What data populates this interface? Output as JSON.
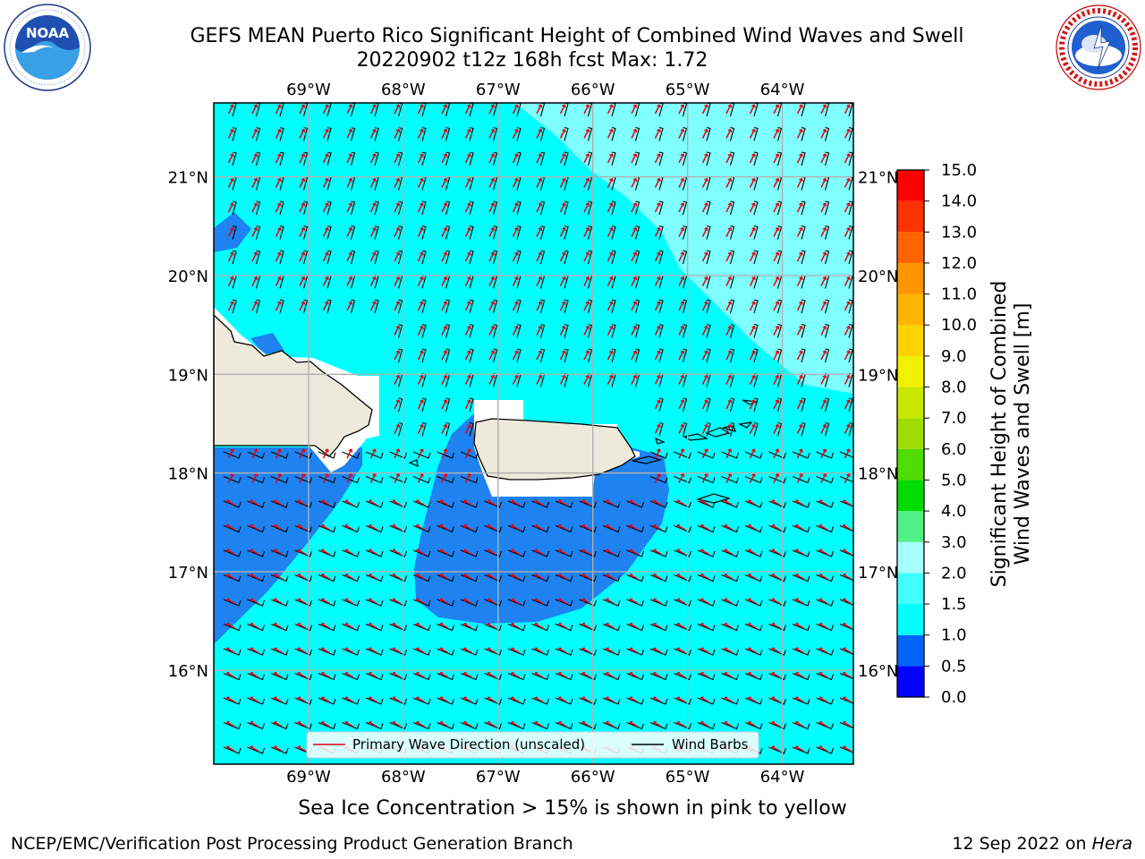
{
  "header": {
    "title_line1": "GEFS MEAN Puerto Rico Significant Height of Combined Wind Waves and Swell",
    "title_line2": "20220902 t12z 168h fcst   Max: 1.72"
  },
  "logos": {
    "left": {
      "name": "noaa-logo",
      "text": "NOAA",
      "ring_text": "NATIONAL OCEANIC AND ATMOSPHERIC ADMINISTRATION · U.S. DEPARTMENT OF COMMERCE"
    },
    "right": {
      "name": "nws-logo",
      "ring_text": "NATIONAL WEATHER SERVICE"
    }
  },
  "map": {
    "lon_labels": [
      "69°W",
      "68°W",
      "67°W",
      "66°W",
      "65°W",
      "64°W"
    ],
    "lat_labels": [
      "21°N",
      "20°N",
      "19°N",
      "18°N",
      "17°N",
      "16°N"
    ],
    "lon_ticks": [
      -69,
      -68,
      -67,
      -66,
      -65,
      -64
    ],
    "lat_ticks": [
      21,
      20,
      19,
      18,
      17,
      16
    ],
    "extent": {
      "lon_min": -70,
      "lon_max": -63.25,
      "lat_min": 15.05,
      "lat_max": 21.75
    },
    "grid": true,
    "colors": {
      "ocean_main": "#00ffff",
      "ocean_light": "#7fffff",
      "ocean_low": "#1e82f0",
      "land": "#eeeadb",
      "wave_arrow": "#e8000b",
      "wind_barb": "#000000"
    },
    "legend": {
      "items": [
        {
          "label": "Primary Wave Direction (unscaled)",
          "color": "#e8000b"
        },
        {
          "label": "Wind Barbs",
          "color": "#000000"
        }
      ],
      "placement": "bottom-center"
    }
  },
  "colorbar": {
    "label_line1": "Significant Height of Combined",
    "label_line2": "Wind Waves and Swell [m]",
    "tick_labels": [
      "0.0",
      "0.5",
      "1.0",
      "1.5",
      "2.0",
      "3.0",
      "4.0",
      "5.0",
      "6.0",
      "7.0",
      "8.0",
      "9.0",
      "10.0",
      "11.0",
      "12.0",
      "13.0",
      "14.0",
      "15.0"
    ],
    "colors": [
      "#0000ff",
      "#0064ff",
      "#00ffff",
      "#3fffff",
      "#a5ffff",
      "#50f084",
      "#00dc00",
      "#50dc00",
      "#a0dc00",
      "#c8e600",
      "#f0f000",
      "#ffd200",
      "#ffb400",
      "#ff9600",
      "#ff6400",
      "#ff3200",
      "#ff0000"
    ]
  },
  "footer": {
    "note": "Sea Ice Concentration > 15% is shown in pink to yellow",
    "left": "NCEP/EMC/Verification Post Processing Product Generation Branch",
    "right_prefix": "12 Sep 2022 on ",
    "right_host": "Hera"
  }
}
